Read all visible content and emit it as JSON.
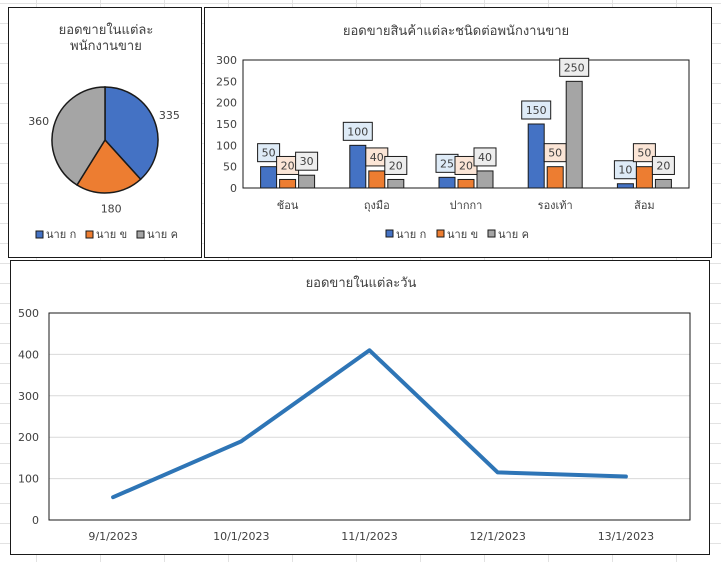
{
  "colors": {
    "series_blue": "#4472C4",
    "series_orange": "#ED7D31",
    "series_gray": "#A5A5A5",
    "line": "#2E75B6",
    "grid": "#D9D9D9"
  },
  "chart_data": [
    {
      "type": "pie",
      "title": [
        "ยอดขายในแต่ละ",
        "พนักงานขาย"
      ],
      "categories": [
        "นาย ก",
        "นาย ข",
        "นาย ค"
      ],
      "values": [
        335,
        180,
        360
      ],
      "legend": "bottom"
    },
    {
      "type": "bar",
      "title": "ยอดขายสินค้าแต่ละชนิดต่อพนักงานขาย",
      "categories": [
        "ช้อน",
        "ถุงมือ",
        "ปากกา",
        "รองเท้า",
        "ส้อม"
      ],
      "series": [
        {
          "name": "นาย ก",
          "values": [
            50,
            100,
            25,
            150,
            10
          ]
        },
        {
          "name": "นาย ข",
          "values": [
            20,
            40,
            20,
            50,
            50
          ]
        },
        {
          "name": "นาย ค",
          "values": [
            30,
            20,
            40,
            250,
            20
          ]
        }
      ],
      "ylim": [
        0,
        300
      ],
      "yticks": [
        0,
        50,
        100,
        150,
        200,
        250,
        300
      ],
      "legend": "bottom",
      "grid": false
    },
    {
      "type": "line",
      "title": "ยอดขายในแต่ละวัน",
      "x": [
        "9/1/2023",
        "10/1/2023",
        "11/1/2023",
        "12/1/2023",
        "13/1/2023"
      ],
      "values": [
        55,
        190,
        410,
        115,
        105
      ],
      "ylim": [
        0,
        500
      ],
      "yticks": [
        0,
        100,
        200,
        300,
        400,
        500
      ],
      "grid": true
    }
  ]
}
